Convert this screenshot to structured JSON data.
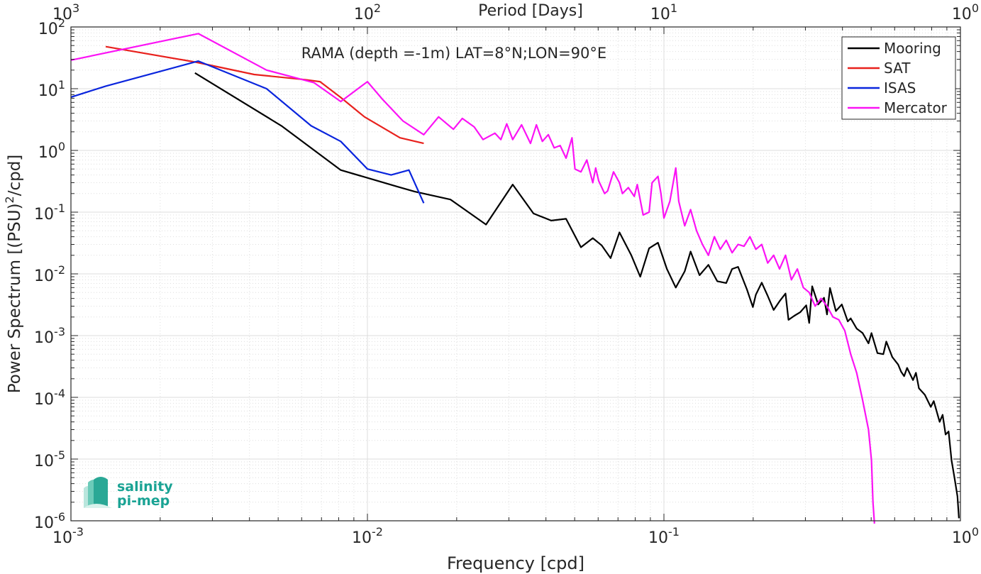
{
  "chart_data": {
    "type": "line",
    "title": "RAMA (depth =-1m) LAT=8°N;LON=90°E",
    "xlabel": "Frequency [cpd]",
    "ylabel": "Power Spectrum [(PSU)²/cpd]",
    "ylabel_base": "Power Spectrum [(PSU)",
    "ylabel_sup": "2",
    "ylabel_tail": "/cpd]",
    "top_xlabel": "Period [Days]",
    "x_scale": "log",
    "y_scale": "log",
    "xlim": [
      0.001,
      1
    ],
    "ylim": [
      1e-06,
      100
    ],
    "grid": true,
    "legend_position": "top-right",
    "x_ticks": [
      {
        "value": 0.001,
        "base": "10",
        "exp": "-3"
      },
      {
        "value": 0.01,
        "base": "10",
        "exp": "-2"
      },
      {
        "value": 0.1,
        "base": "10",
        "exp": "-1"
      },
      {
        "value": 1,
        "base": "10",
        "exp": "0"
      }
    ],
    "top_x_ticks": [
      {
        "value": 0.001,
        "base": "10",
        "exp": "3"
      },
      {
        "value": 0.01,
        "base": "10",
        "exp": "2"
      },
      {
        "value": 0.1,
        "base": "10",
        "exp": "1"
      },
      {
        "value": 1,
        "base": "10",
        "exp": "0"
      }
    ],
    "y_ticks": [
      {
        "value": 100,
        "base": "10",
        "exp": "2"
      },
      {
        "value": 10,
        "base": "10",
        "exp": "1"
      },
      {
        "value": 1,
        "base": "10",
        "exp": "0"
      },
      {
        "value": 0.1,
        "base": "10",
        "exp": "-1"
      },
      {
        "value": 0.01,
        "base": "10",
        "exp": "-2"
      },
      {
        "value": 0.001,
        "base": "10",
        "exp": "-3"
      },
      {
        "value": 0.0001,
        "base": "10",
        "exp": "-4"
      },
      {
        "value": 1e-05,
        "base": "10",
        "exp": "-5"
      },
      {
        "value": 1e-06,
        "base": "10",
        "exp": "-6"
      }
    ],
    "series": [
      {
        "name": "Mooring",
        "color": "#000000",
        "points": [
          [
            0.00262,
            18
          ],
          [
            0.00513,
            2.5
          ],
          [
            0.00813,
            0.48
          ],
          [
            0.01259,
            0.26
          ],
          [
            0.01445,
            0.215
          ],
          [
            0.01905,
            0.16
          ],
          [
            0.02512,
            0.063
          ],
          [
            0.0309,
            0.28
          ],
          [
            0.03631,
            0.095
          ],
          [
            0.04168,
            0.073
          ],
          [
            0.04677,
            0.078
          ],
          [
            0.05248,
            0.027
          ],
          [
            0.05754,
            0.038
          ],
          [
            0.06166,
            0.029
          ],
          [
            0.06607,
            0.018
          ],
          [
            0.07079,
            0.047
          ],
          [
            0.07762,
            0.02
          ],
          [
            0.08318,
            0.009
          ],
          [
            0.08913,
            0.026
          ],
          [
            0.0955,
            0.032
          ],
          [
            0.10233,
            0.012
          ],
          [
            0.10965,
            0.006
          ],
          [
            0.11749,
            0.011
          ],
          [
            0.12303,
            0.023
          ],
          [
            0.13183,
            0.0095
          ],
          [
            0.14125,
            0.014
          ],
          [
            0.15136,
            0.0076
          ],
          [
            0.16218,
            0.0071
          ],
          [
            0.16982,
            0.012
          ],
          [
            0.17783,
            0.013
          ],
          [
            0.19055,
            0.0056
          ],
          [
            0.19953,
            0.0029
          ],
          [
            0.20417,
            0.0046
          ],
          [
            0.2138,
            0.0072
          ],
          [
            0.22387,
            0.0044
          ],
          [
            0.23442,
            0.0026
          ],
          [
            0.24547,
            0.0036
          ],
          [
            0.25704,
            0.0048
          ],
          [
            0.26303,
            0.0018
          ],
          [
            0.27542,
            0.0021
          ],
          [
            0.2884,
            0.0024
          ],
          [
            0.302,
            0.0031
          ],
          [
            0.30903,
            0.0016
          ],
          [
            0.31623,
            0.0063
          ],
          [
            0.33113,
            0.0032
          ],
          [
            0.34674,
            0.0041
          ],
          [
            0.35481,
            0.0022
          ],
          [
            0.36308,
            0.0059
          ],
          [
            0.38019,
            0.0025
          ],
          [
            0.39811,
            0.0032
          ],
          [
            0.41687,
            0.0017
          ],
          [
            0.42658,
            0.0019
          ],
          [
            0.44668,
            0.0013
          ],
          [
            0.46774,
            0.0011
          ],
          [
            0.48978,
            0.00075
          ],
          [
            0.50119,
            0.0011
          ],
          [
            0.52481,
            0.00052
          ],
          [
            0.54954,
            0.0005
          ],
          [
            0.56234,
            0.0008
          ],
          [
            0.58884,
            0.00045
          ],
          [
            0.6166,
            0.00034
          ],
          [
            0.63096,
            0.00026
          ],
          [
            0.64565,
            0.00022
          ],
          [
            0.66069,
            0.0003
          ],
          [
            0.69183,
            0.00019
          ],
          [
            0.70795,
            0.00025
          ],
          [
            0.72444,
            0.00014
          ],
          [
            0.75858,
            0.00011
          ],
          [
            0.79433,
            7e-05
          ],
          [
            0.81283,
            8.7e-05
          ],
          [
            0.85114,
            4e-05
          ],
          [
            0.87096,
            5.2e-05
          ],
          [
            0.89125,
            2.5e-05
          ],
          [
            0.91201,
            2.8e-05
          ],
          [
            0.93325,
            9.5e-06
          ],
          [
            0.95499,
            5e-06
          ],
          [
            0.97724,
            2.5e-06
          ],
          [
            0.98855,
            1.1e-06
          ]
        ]
      },
      {
        "name": "SAT",
        "color": "#e8211d",
        "points": [
          [
            0.00131,
            48
          ],
          [
            0.00263,
            27
          ],
          [
            0.00415,
            17
          ],
          [
            0.00617,
            14
          ],
          [
            0.00692,
            13
          ],
          [
            0.00813,
            7.2
          ],
          [
            0.00977,
            3.5
          ],
          [
            0.01288,
            1.6
          ],
          [
            0.01549,
            1.3
          ]
        ]
      },
      {
        "name": "ISAS",
        "color": "#0a25dd",
        "points": [
          [
            0.001,
            7.3
          ],
          [
            0.00131,
            11
          ],
          [
            0.00269,
            28
          ],
          [
            0.00457,
            10
          ],
          [
            0.00646,
            2.5
          ],
          [
            0.00813,
            1.4
          ],
          [
            0.01,
            0.5
          ],
          [
            0.01202,
            0.4
          ],
          [
            0.0138,
            0.48
          ],
          [
            0.01549,
            0.14
          ]
        ]
      },
      {
        "name": "Mercator",
        "color": "#fb13f5",
        "points": [
          [
            0.001,
            29
          ],
          [
            0.00269,
            78
          ],
          [
            0.00457,
            20
          ],
          [
            0.00661,
            12.5
          ],
          [
            0.00813,
            6.2
          ],
          [
            0.01,
            13
          ],
          [
            0.01122,
            6.8
          ],
          [
            0.01318,
            3
          ],
          [
            0.01549,
            1.8
          ],
          [
            0.01738,
            3.5
          ],
          [
            0.0195,
            2.2
          ],
          [
            0.02089,
            3.3
          ],
          [
            0.02291,
            2.4
          ],
          [
            0.02455,
            1.5
          ],
          [
            0.02692,
            1.9
          ],
          [
            0.02818,
            1.5
          ],
          [
            0.02951,
            2.7
          ],
          [
            0.0309,
            1.5
          ],
          [
            0.03311,
            2.6
          ],
          [
            0.03548,
            1.3
          ],
          [
            0.03715,
            2.6
          ],
          [
            0.0389,
            1.4
          ],
          [
            0.04074,
            1.8
          ],
          [
            0.04266,
            1.1
          ],
          [
            0.04467,
            1.2
          ],
          [
            0.04677,
            0.75
          ],
          [
            0.04898,
            1.6
          ],
          [
            0.05012,
            0.5
          ],
          [
            0.05248,
            0.45
          ],
          [
            0.05495,
            0.7
          ],
          [
            0.05754,
            0.3
          ],
          [
            0.05888,
            0.52
          ],
          [
            0.06026,
            0.32
          ],
          [
            0.0631,
            0.2
          ],
          [
            0.06457,
            0.22
          ],
          [
            0.06761,
            0.45
          ],
          [
            0.07079,
            0.3
          ],
          [
            0.07244,
            0.2
          ],
          [
            0.07586,
            0.25
          ],
          [
            0.07943,
            0.18
          ],
          [
            0.08128,
            0.28
          ],
          [
            0.08511,
            0.09
          ],
          [
            0.08913,
            0.1
          ],
          [
            0.0912,
            0.3
          ],
          [
            0.0955,
            0.38
          ],
          [
            0.09772,
            0.2
          ],
          [
            0.1,
            0.08
          ],
          [
            0.10471,
            0.15
          ],
          [
            0.10965,
            0.52
          ],
          [
            0.1122,
            0.15
          ],
          [
            0.11749,
            0.06
          ],
          [
            0.12303,
            0.11
          ],
          [
            0.12882,
            0.05
          ],
          [
            0.1349,
            0.03
          ],
          [
            0.14125,
            0.02
          ],
          [
            0.14791,
            0.04
          ],
          [
            0.15488,
            0.025
          ],
          [
            0.16218,
            0.035
          ],
          [
            0.16982,
            0.022
          ],
          [
            0.17783,
            0.03
          ],
          [
            0.18621,
            0.028
          ],
          [
            0.19498,
            0.04
          ],
          [
            0.20417,
            0.025
          ],
          [
            0.2138,
            0.03
          ],
          [
            0.22387,
            0.015
          ],
          [
            0.23442,
            0.02
          ],
          [
            0.24547,
            0.012
          ],
          [
            0.25704,
            0.02
          ],
          [
            0.26915,
            0.008
          ],
          [
            0.28184,
            0.012
          ],
          [
            0.29512,
            0.006
          ],
          [
            0.30903,
            0.005
          ],
          [
            0.32359,
            0.003
          ],
          [
            0.33884,
            0.004
          ],
          [
            0.35481,
            0.003
          ],
          [
            0.37154,
            0.002
          ],
          [
            0.38905,
            0.0018
          ],
          [
            0.40738,
            0.0012
          ],
          [
            0.42658,
            0.0005
          ],
          [
            0.44668,
            0.00025
          ],
          [
            0.46774,
            9e-05
          ],
          [
            0.48978,
            3e-05
          ],
          [
            0.50119,
            9.5e-06
          ],
          [
            0.507,
            2e-06
          ],
          [
            0.51286,
            9e-07
          ]
        ]
      }
    ]
  },
  "logo": {
    "line1": "salinity",
    "line2": "pi-mep"
  }
}
